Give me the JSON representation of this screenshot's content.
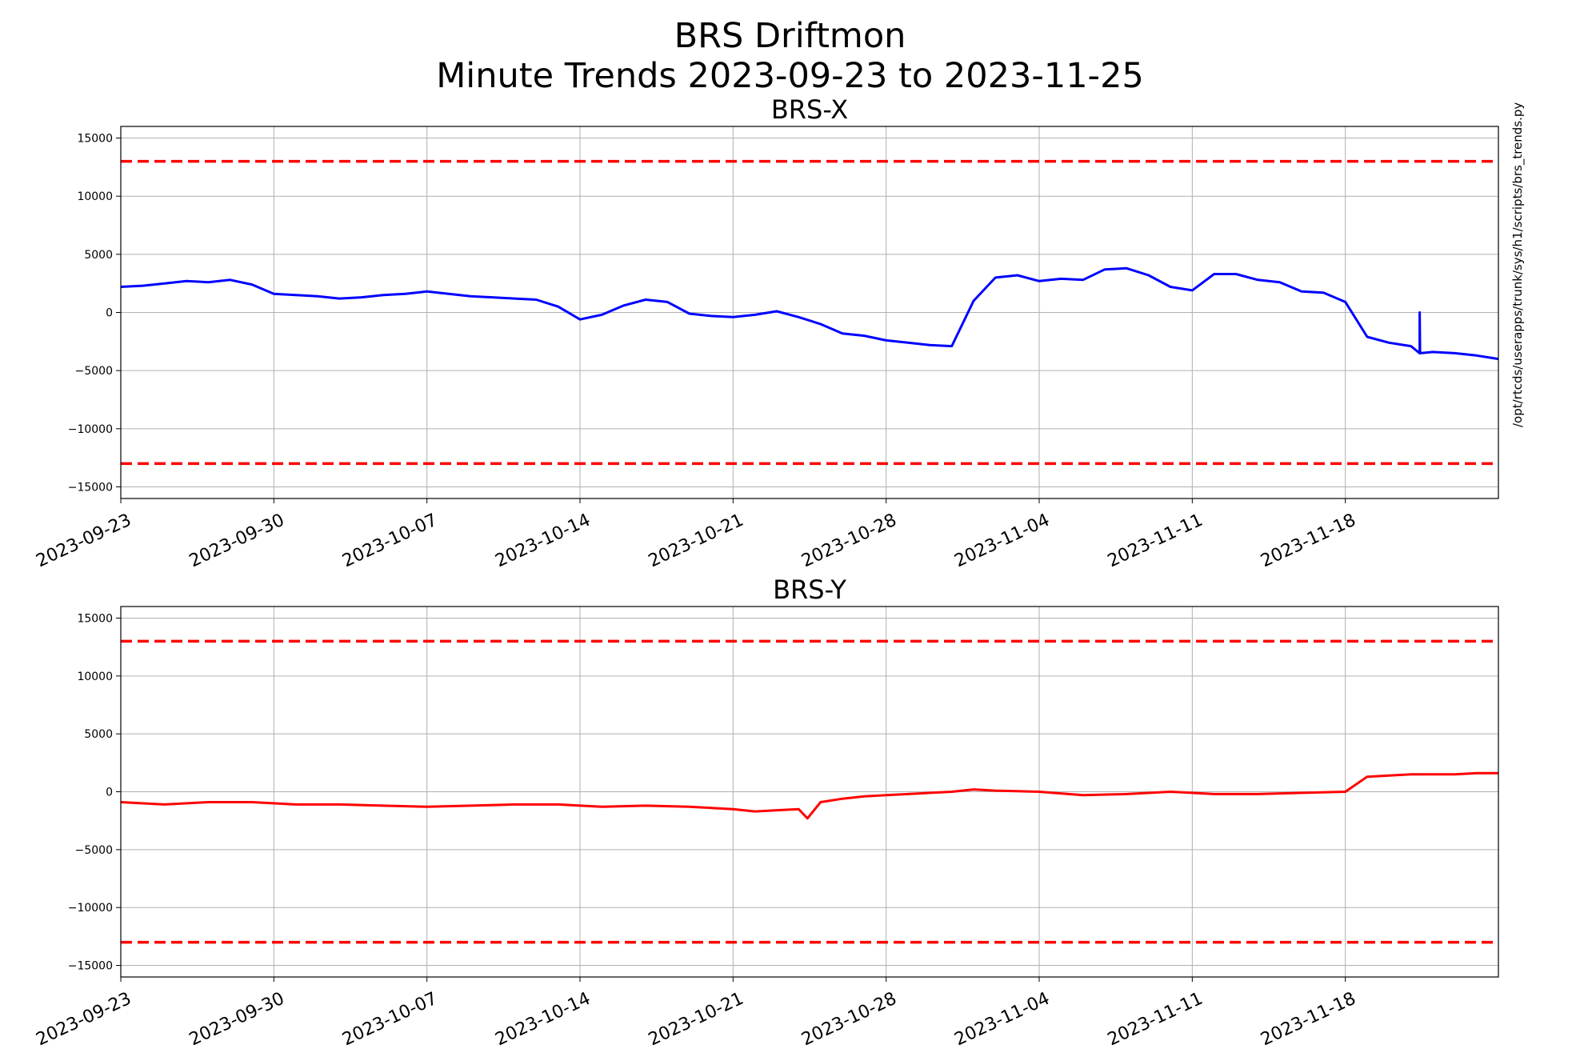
{
  "figure": {
    "title_line1": "BRS Driftmon",
    "title_line2": "Minute Trends 2023-09-23  to 2023-11-25",
    "side_note": "/opt/rtcds/userapps/trunk/sys/h1/scripts/brs_trends.py"
  },
  "colors": {
    "brs_x": "#0000ff",
    "brs_y": "#ff0000",
    "threshold": "#ff0000",
    "grid": "#b0b0b0"
  },
  "chart_data": [
    {
      "type": "line",
      "title": "BRS-X",
      "xlabel": "",
      "ylabel": "",
      "xlim": [
        "2023-09-23",
        "2023-11-25"
      ],
      "ylim": [
        -16000,
        16000
      ],
      "yticks": [
        -15000,
        -10000,
        -5000,
        0,
        5000,
        10000,
        15000
      ],
      "ytick_labels": [
        "−15000",
        "−10000",
        "−5000",
        "0",
        "5000",
        "10000",
        "15000"
      ],
      "xticks": [
        "2023-09-23",
        "2023-09-30",
        "2023-10-07",
        "2023-10-14",
        "2023-10-21",
        "2023-10-28",
        "2023-11-04",
        "2023-11-11",
        "2023-11-18"
      ],
      "grid": true,
      "thresholds": [
        13000,
        -13000
      ],
      "series": [
        {
          "color": "#0000ff",
          "x": [
            "2023-09-23",
            "2023-09-24",
            "2023-09-25",
            "2023-09-26",
            "2023-09-27",
            "2023-09-28",
            "2023-09-29",
            "2023-09-30",
            "2023-10-01",
            "2023-10-02",
            "2023-10-03",
            "2023-10-04",
            "2023-10-05",
            "2023-10-06",
            "2023-10-07",
            "2023-10-08",
            "2023-10-09",
            "2023-10-10",
            "2023-10-11",
            "2023-10-12",
            "2023-10-13",
            "2023-10-14",
            "2023-10-15",
            "2023-10-16",
            "2023-10-17",
            "2023-10-18",
            "2023-10-19",
            "2023-10-20",
            "2023-10-21",
            "2023-10-22",
            "2023-10-23",
            "2023-10-24",
            "2023-10-25",
            "2023-10-26",
            "2023-10-27",
            "2023-10-28",
            "2023-10-29",
            "2023-10-30",
            "2023-10-31",
            "2023-11-01",
            "2023-11-02",
            "2023-11-03",
            "2023-11-04",
            "2023-11-05",
            "2023-11-06",
            "2023-11-07",
            "2023-11-08",
            "2023-11-09",
            "2023-11-10",
            "2023-11-11",
            "2023-11-12",
            "2023-11-13",
            "2023-11-14",
            "2023-11-15",
            "2023-11-16",
            "2023-11-17",
            "2023-11-18",
            "2023-11-19",
            "2023-11-20",
            "2023-11-21",
            "2023-11-22",
            "2023-11-23",
            "2023-11-24",
            "2023-11-25"
          ],
          "y": [
            2200,
            2300,
            2500,
            2700,
            2600,
            2800,
            2400,
            1600,
            1500,
            1400,
            1200,
            1300,
            1500,
            1600,
            1800,
            1600,
            1400,
            1300,
            1200,
            1100,
            500,
            -600,
            -200,
            600,
            1100,
            900,
            -100,
            -300,
            -400,
            -200,
            100,
            -400,
            -1000,
            -1800,
            -2000,
            -2400,
            -2600,
            -2800,
            -2900,
            1000,
            3000,
            3200,
            2700,
            2900,
            2800,
            3700,
            3800,
            3200,
            2200,
            1900,
            3300,
            3300,
            2800,
            2600,
            1800,
            1700,
            900,
            -2100,
            -2600,
            -2900,
            -3400,
            -3500,
            -3700,
            -4000
          ]
        }
      ],
      "annotations": [
        {
          "x": "2023-11-21",
          "y_from": -3500,
          "y_to": 0,
          "kind": "spike"
        }
      ]
    },
    {
      "type": "line",
      "title": "BRS-Y",
      "xlabel": "",
      "ylabel": "",
      "xlim": [
        "2023-09-23",
        "2023-11-25"
      ],
      "ylim": [
        -16000,
        16000
      ],
      "yticks": [
        -15000,
        -10000,
        -5000,
        0,
        5000,
        10000,
        15000
      ],
      "ytick_labels": [
        "−15000",
        "−10000",
        "−5000",
        "0",
        "5000",
        "10000",
        "15000"
      ],
      "xticks": [
        "2023-09-23",
        "2023-09-30",
        "2023-10-07",
        "2023-10-14",
        "2023-10-21",
        "2023-10-28",
        "2023-11-04",
        "2023-11-11",
        "2023-11-18"
      ],
      "grid": true,
      "thresholds": [
        13000,
        -13000
      ],
      "series": [
        {
          "color": "#ff0000",
          "x": [
            "2023-09-23",
            "2023-09-25",
            "2023-09-27",
            "2023-09-29",
            "2023-10-01",
            "2023-10-03",
            "2023-10-05",
            "2023-10-07",
            "2023-10-09",
            "2023-10-11",
            "2023-10-13",
            "2023-10-15",
            "2023-10-17",
            "2023-10-19",
            "2023-10-21",
            "2023-10-22",
            "2023-10-23",
            "2023-10-24",
            "2023-10-25",
            "2023-10-26",
            "2023-10-27",
            "2023-10-28",
            "2023-10-29",
            "2023-10-30",
            "2023-10-31",
            "2023-11-01",
            "2023-11-02",
            "2023-11-04",
            "2023-11-06",
            "2023-11-08",
            "2023-11-10",
            "2023-11-11",
            "2023-11-12",
            "2023-11-14",
            "2023-11-16",
            "2023-11-18",
            "2023-11-19",
            "2023-11-20",
            "2023-11-21",
            "2023-11-22",
            "2023-11-23",
            "2023-11-24",
            "2023-11-25"
          ],
          "y": [
            -900,
            -1100,
            -900,
            -900,
            -1100,
            -1100,
            -1200,
            -1300,
            -1200,
            -1100,
            -1100,
            -1300,
            -1200,
            -1300,
            -1500,
            -1700,
            -1600,
            -1500,
            -900,
            -600,
            -400,
            -300,
            -200,
            -100,
            0,
            200,
            100,
            0,
            -300,
            -200,
            0,
            -100,
            -200,
            -200,
            -100,
            0,
            1300,
            1400,
            1500,
            1500,
            1500,
            1600,
            1600
          ]
        }
      ],
      "annotations": [
        {
          "x": "2023-10-24",
          "y": -2300,
          "kind": "dip"
        }
      ]
    }
  ]
}
